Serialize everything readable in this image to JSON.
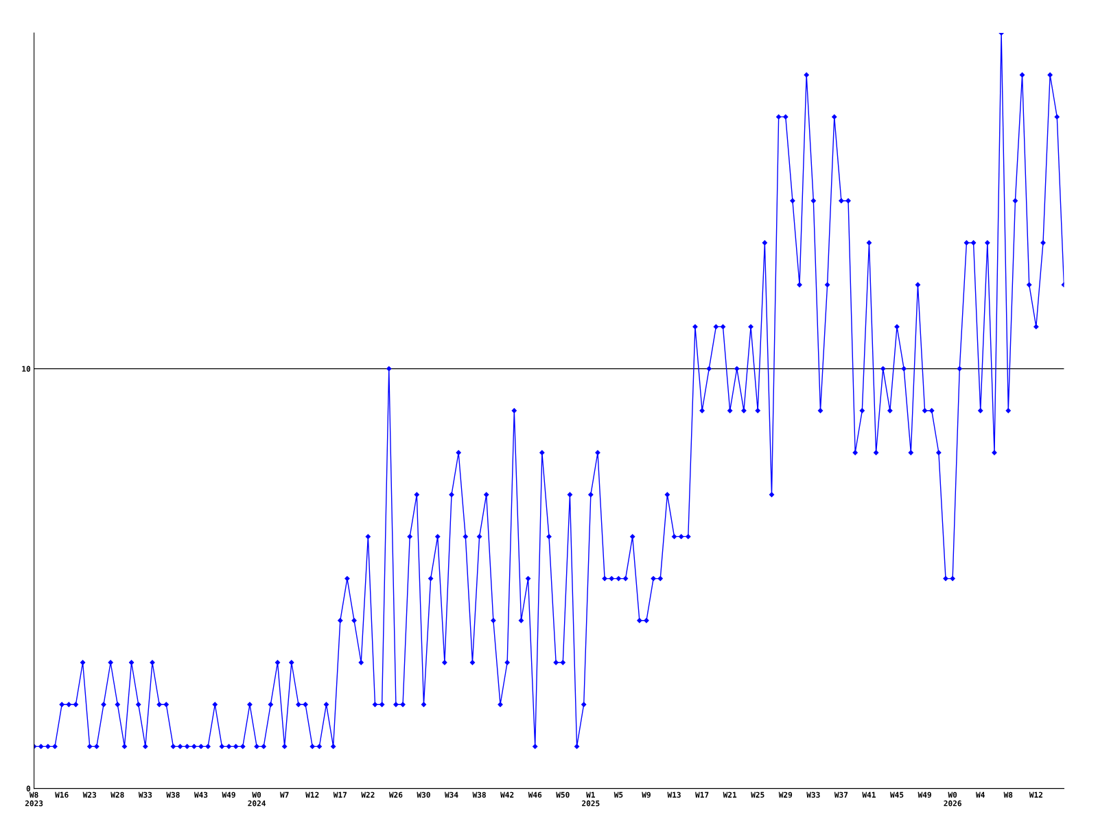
{
  "chart_data": {
    "type": "line",
    "categories": [
      "W8\n2023",
      null,
      null,
      null,
      "W16",
      null,
      null,
      null,
      "W23",
      null,
      null,
      null,
      "W28",
      null,
      null,
      null,
      "W33",
      null,
      null,
      null,
      "W38",
      null,
      null,
      null,
      "W43",
      null,
      null,
      null,
      "W49",
      null,
      null,
      null,
      "W0\n2024",
      null,
      null,
      null,
      "W7",
      null,
      null,
      null,
      "W12",
      null,
      null,
      null,
      "W17",
      null,
      null,
      null,
      "W22",
      null,
      null,
      null,
      "W26",
      null,
      null,
      null,
      "W30",
      null,
      null,
      null,
      "W34",
      null,
      null,
      null,
      "W38",
      null,
      null,
      null,
      "W42",
      null,
      null,
      null,
      "W46",
      null,
      null,
      null,
      "W50",
      null,
      null,
      null,
      "W1\n2025",
      null,
      null,
      null,
      "W5",
      null,
      null,
      null,
      "W9",
      null,
      null,
      null,
      "W13",
      null,
      null,
      null,
      "W17",
      null,
      null,
      null,
      "W21",
      null,
      null,
      null,
      "W25",
      null,
      null,
      null,
      "W29",
      null,
      null,
      null,
      "W33",
      null,
      null,
      null,
      "W37",
      null,
      null,
      null,
      "W41",
      null,
      null,
      null,
      "W45",
      null,
      null,
      null,
      "W49",
      null,
      null,
      null,
      "W0\n2026",
      null,
      null,
      null,
      "W4",
      null,
      null,
      null,
      "W8",
      null,
      null,
      null,
      "W12",
      null,
      null,
      null,
      null
    ],
    "series": [
      {
        "color": "#0000ff",
        "values": [
          1,
          1,
          1,
          1,
          2,
          2,
          2,
          3,
          1,
          1,
          2,
          3,
          2,
          1,
          3,
          2,
          1,
          3,
          2,
          2,
          1,
          1,
          1,
          1,
          1,
          1,
          2,
          1,
          1,
          1,
          1,
          2,
          1,
          1,
          2,
          3,
          1,
          3,
          2,
          2,
          1,
          1,
          2,
          1,
          4,
          5,
          4,
          3,
          6,
          2,
          2,
          10,
          2,
          2,
          6,
          7,
          2,
          5,
          6,
          3,
          7,
          8,
          6,
          3,
          6,
          7,
          4,
          2,
          3,
          9,
          4,
          5,
          1,
          8,
          6,
          3,
          3,
          7,
          1,
          2,
          7,
          8,
          5,
          5,
          5,
          5,
          6,
          4,
          4,
          5,
          5,
          7,
          6,
          6,
          6,
          11,
          9,
          10,
          11,
          11,
          9,
          10,
          9,
          11,
          9,
          13,
          7,
          16,
          16,
          14,
          12,
          17,
          14,
          9,
          12,
          16,
          14,
          14,
          8,
          9,
          13,
          8,
          10,
          9,
          11,
          10,
          8,
          12,
          9,
          9,
          8,
          5,
          5,
          10,
          13,
          13,
          9,
          13,
          8,
          18,
          9,
          14,
          17,
          12,
          11,
          13,
          17,
          16,
          12
        ]
      }
    ],
    "ylim": [
      0,
      18
    ],
    "yticks": [
      0,
      10
    ],
    "grid": "y",
    "marker": "diamond",
    "line_style": "solid",
    "legend": false
  }
}
